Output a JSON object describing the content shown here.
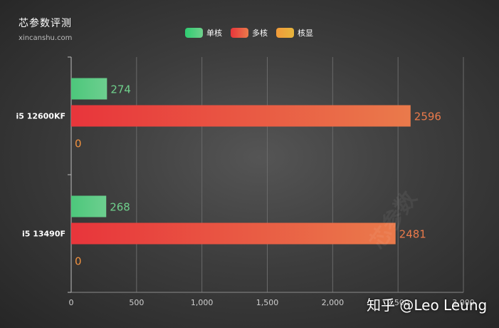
{
  "header": {
    "title": "芯参数评测",
    "subtitle": "xincanshu.com"
  },
  "legend": [
    {
      "label": "单核",
      "color_from": "#2ecc71",
      "color_to": "#6fd08c"
    },
    {
      "label": "多核",
      "color_from": "#e8353b",
      "color_to": "#ea7a4b"
    },
    {
      "label": "核显",
      "color_from": "#f19a3a",
      "color_to": "#e6b53c"
    }
  ],
  "watermark": "芯参数",
  "zhihu_watermark": "知乎 @Leo Leung",
  "chart_data": {
    "type": "bar",
    "orientation": "horizontal",
    "categories": [
      "i5 12600KF",
      "i5 13490F"
    ],
    "series": [
      {
        "name": "单核",
        "values": [
          274,
          268
        ],
        "color": "#5dca85",
        "label_color": "#6fd08c"
      },
      {
        "name": "多核",
        "values": [
          2596,
          2481
        ],
        "color": "#e8453c",
        "label_color": "#ea7a4b"
      },
      {
        "name": "核显",
        "values": [
          0,
          0
        ],
        "color": "#f19a3a",
        "label_color": "#f0913f"
      }
    ],
    "xlim": [
      0,
      3000
    ],
    "xticks": [
      "0",
      "500",
      "1,000",
      "1,500",
      "2,000",
      "2,500",
      "3,000"
    ],
    "xtick_values": [
      0,
      500,
      1000,
      1500,
      2000,
      2500,
      3000
    ],
    "grid": true,
    "legend_position": "top-center"
  }
}
